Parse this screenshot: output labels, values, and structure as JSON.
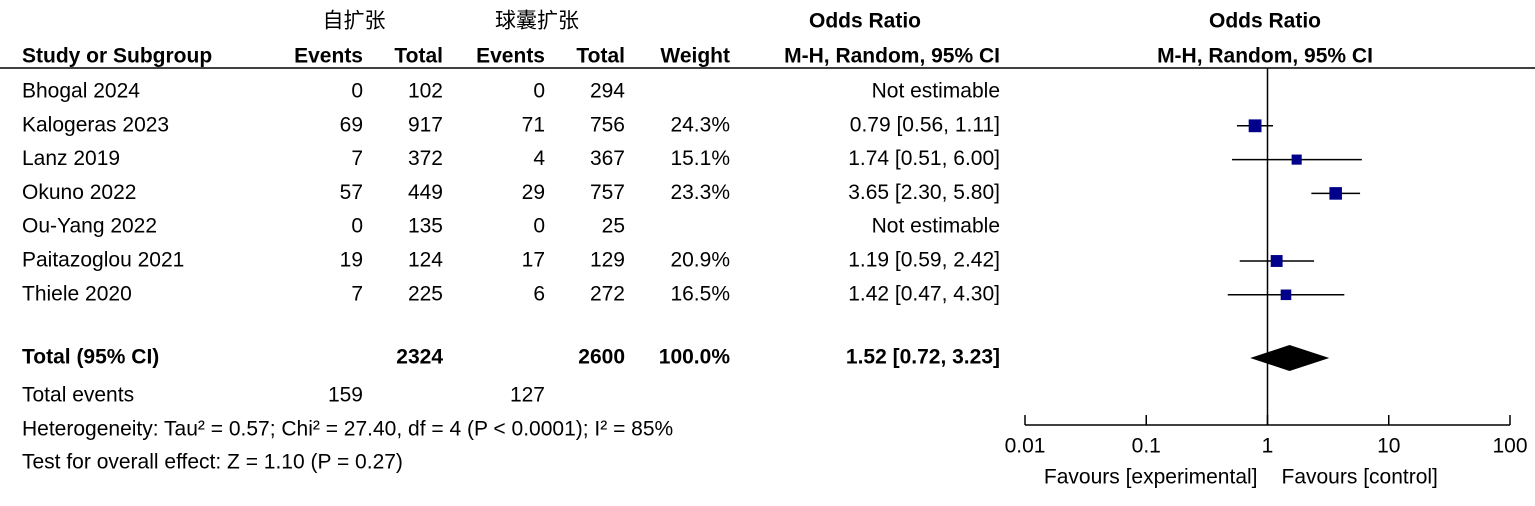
{
  "chart_data": {
    "type": "forest",
    "group_headers": [
      "自扩张",
      "球囊扩张"
    ],
    "column_headers": {
      "study": "Study or Subgroup",
      "events": "Events",
      "total": "Total",
      "weight": "Weight"
    },
    "or_title": "Odds Ratio",
    "or_method": "M-H, Random, 95% CI",
    "studies": [
      {
        "name": "Bhogal 2024",
        "events_1": 0,
        "total_1": 102,
        "events_2": 0,
        "total_2": 294,
        "weight": null,
        "weight_label": null,
        "or": null,
        "lo": null,
        "hi": null,
        "ci_label": "Not estimable"
      },
      {
        "name": "Kalogeras 2023",
        "events_1": 69,
        "total_1": 917,
        "events_2": 71,
        "total_2": 756,
        "weight": 24.3,
        "weight_label": "24.3%",
        "or": 0.79,
        "lo": 0.56,
        "hi": 1.11,
        "ci_label": "0.79 [0.56, 1.11]"
      },
      {
        "name": "Lanz 2019",
        "events_1": 7,
        "total_1": 372,
        "events_2": 4,
        "total_2": 367,
        "weight": 15.1,
        "weight_label": "15.1%",
        "or": 1.74,
        "lo": 0.51,
        "hi": 6.0,
        "ci_label": "1.74 [0.51, 6.00]"
      },
      {
        "name": "Okuno 2022",
        "events_1": 57,
        "total_1": 449,
        "events_2": 29,
        "total_2": 757,
        "weight": 23.3,
        "weight_label": "23.3%",
        "or": 3.65,
        "lo": 2.3,
        "hi": 5.8,
        "ci_label": "3.65 [2.30, 5.80]"
      },
      {
        "name": "Ou-Yang  2022",
        "events_1": 0,
        "total_1": 135,
        "events_2": 0,
        "total_2": 25,
        "weight": null,
        "weight_label": null,
        "or": null,
        "lo": null,
        "hi": null,
        "ci_label": "Not estimable"
      },
      {
        "name": "Paitazoglou 2021",
        "events_1": 19,
        "total_1": 124,
        "events_2": 17,
        "total_2": 129,
        "weight": 20.9,
        "weight_label": "20.9%",
        "or": 1.19,
        "lo": 0.59,
        "hi": 2.42,
        "ci_label": "1.19 [0.59, 2.42]"
      },
      {
        "name": "Thiele 2020",
        "events_1": 7,
        "total_1": 225,
        "events_2": 6,
        "total_2": 272,
        "weight": 16.5,
        "weight_label": "16.5%",
        "or": 1.42,
        "lo": 0.47,
        "hi": 4.3,
        "ci_label": "1.42 [0.47, 4.30]"
      }
    ],
    "total": {
      "name": "Total (95% CI)",
      "total_1": 2324,
      "total_2": 2600,
      "weight": 100.0,
      "weight_label": "100.0%",
      "or": 1.52,
      "lo": 0.72,
      "hi": 3.23,
      "ci_label": "1.52 [0.72, 3.23]"
    },
    "total_events": {
      "name": "Total events",
      "events_1": 159,
      "events_2": 127
    },
    "heterogeneity": "Heterogeneity: Tau² = 0.57; Chi² = 27.40, df = 4 (P < 0.0001); I² = 85%",
    "overall_effect": "Test for overall effect: Z = 1.10 (P = 0.27)",
    "xlim": [
      0.01,
      100
    ],
    "xticks": [
      0.01,
      0.1,
      1,
      10,
      100
    ],
    "log_x": true,
    "favours_left": "Favours [experimental]",
    "favours_right": "Favours [control]",
    "marker_color": "#00008b",
    "diamond_color": "#000000"
  }
}
